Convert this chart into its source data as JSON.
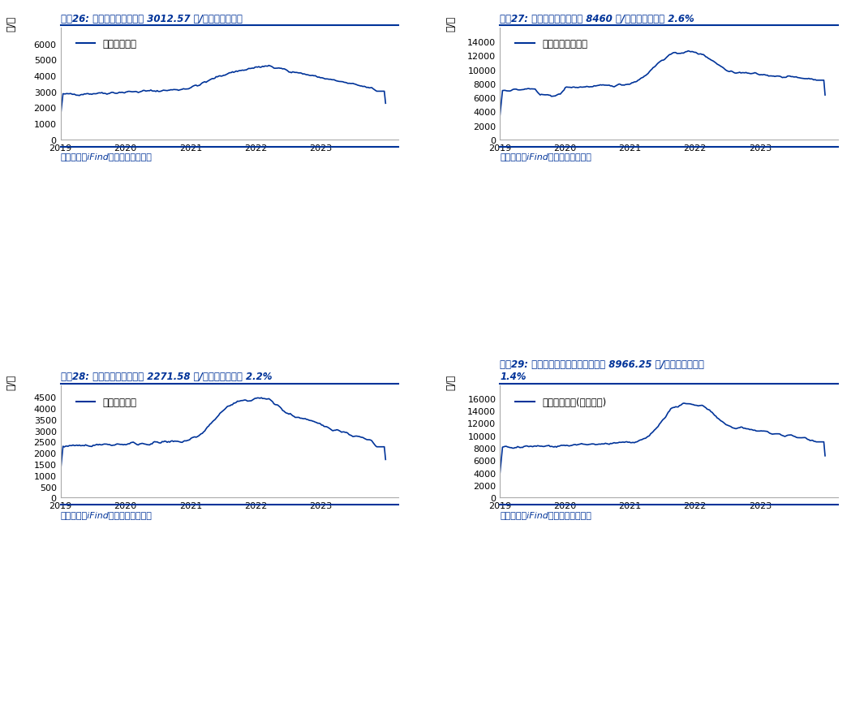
{
  "title1": "图表26: 本周国内豆粕现货价 3012.57 元/吨，较上周持平",
  "title2": "图表27: 本周一级豆油现货价 8460 元/吨，较上周上涨 2.6%",
  "title3": "图表28: 本周国内菜粕现货价 2271.58 元/吨，较上周上涨 2.2%",
  "title4": "图表29: 本周国内进口四级菜油现货价 8966.25 元/吨，较上周下跌\n1.4%",
  "legend1": "现货价：豆粕",
  "legend2": "现货价：一级豆油",
  "legend3": "现货价：菜粕",
  "legend4": "现货价：菜油(进口四级)",
  "ylabel": "元/吨",
  "source": "资料来源：iFind，国盛证券研究所",
  "line_color": "#003399",
  "title_color": "#003399",
  "source_color": "#003399",
  "background_color": "#ffffff",
  "plot_bg_color": "#ffffff",
  "chart1_ylim": [
    0,
    7000
  ],
  "chart1_yticks": [
    0,
    1000,
    2000,
    3000,
    4000,
    5000,
    6000
  ],
  "chart2_ylim": [
    0,
    16000
  ],
  "chart2_yticks": [
    0,
    2000,
    4000,
    6000,
    8000,
    10000,
    12000,
    14000
  ],
  "chart3_ylim": [
    0,
    5000
  ],
  "chart3_yticks": [
    0,
    500,
    1000,
    1500,
    2000,
    2500,
    3000,
    3500,
    4000,
    4500
  ],
  "chart4_ylim": [
    0,
    18000
  ],
  "chart4_yticks": [
    0,
    2000,
    4000,
    6000,
    8000,
    10000,
    12000,
    14000,
    16000
  ]
}
